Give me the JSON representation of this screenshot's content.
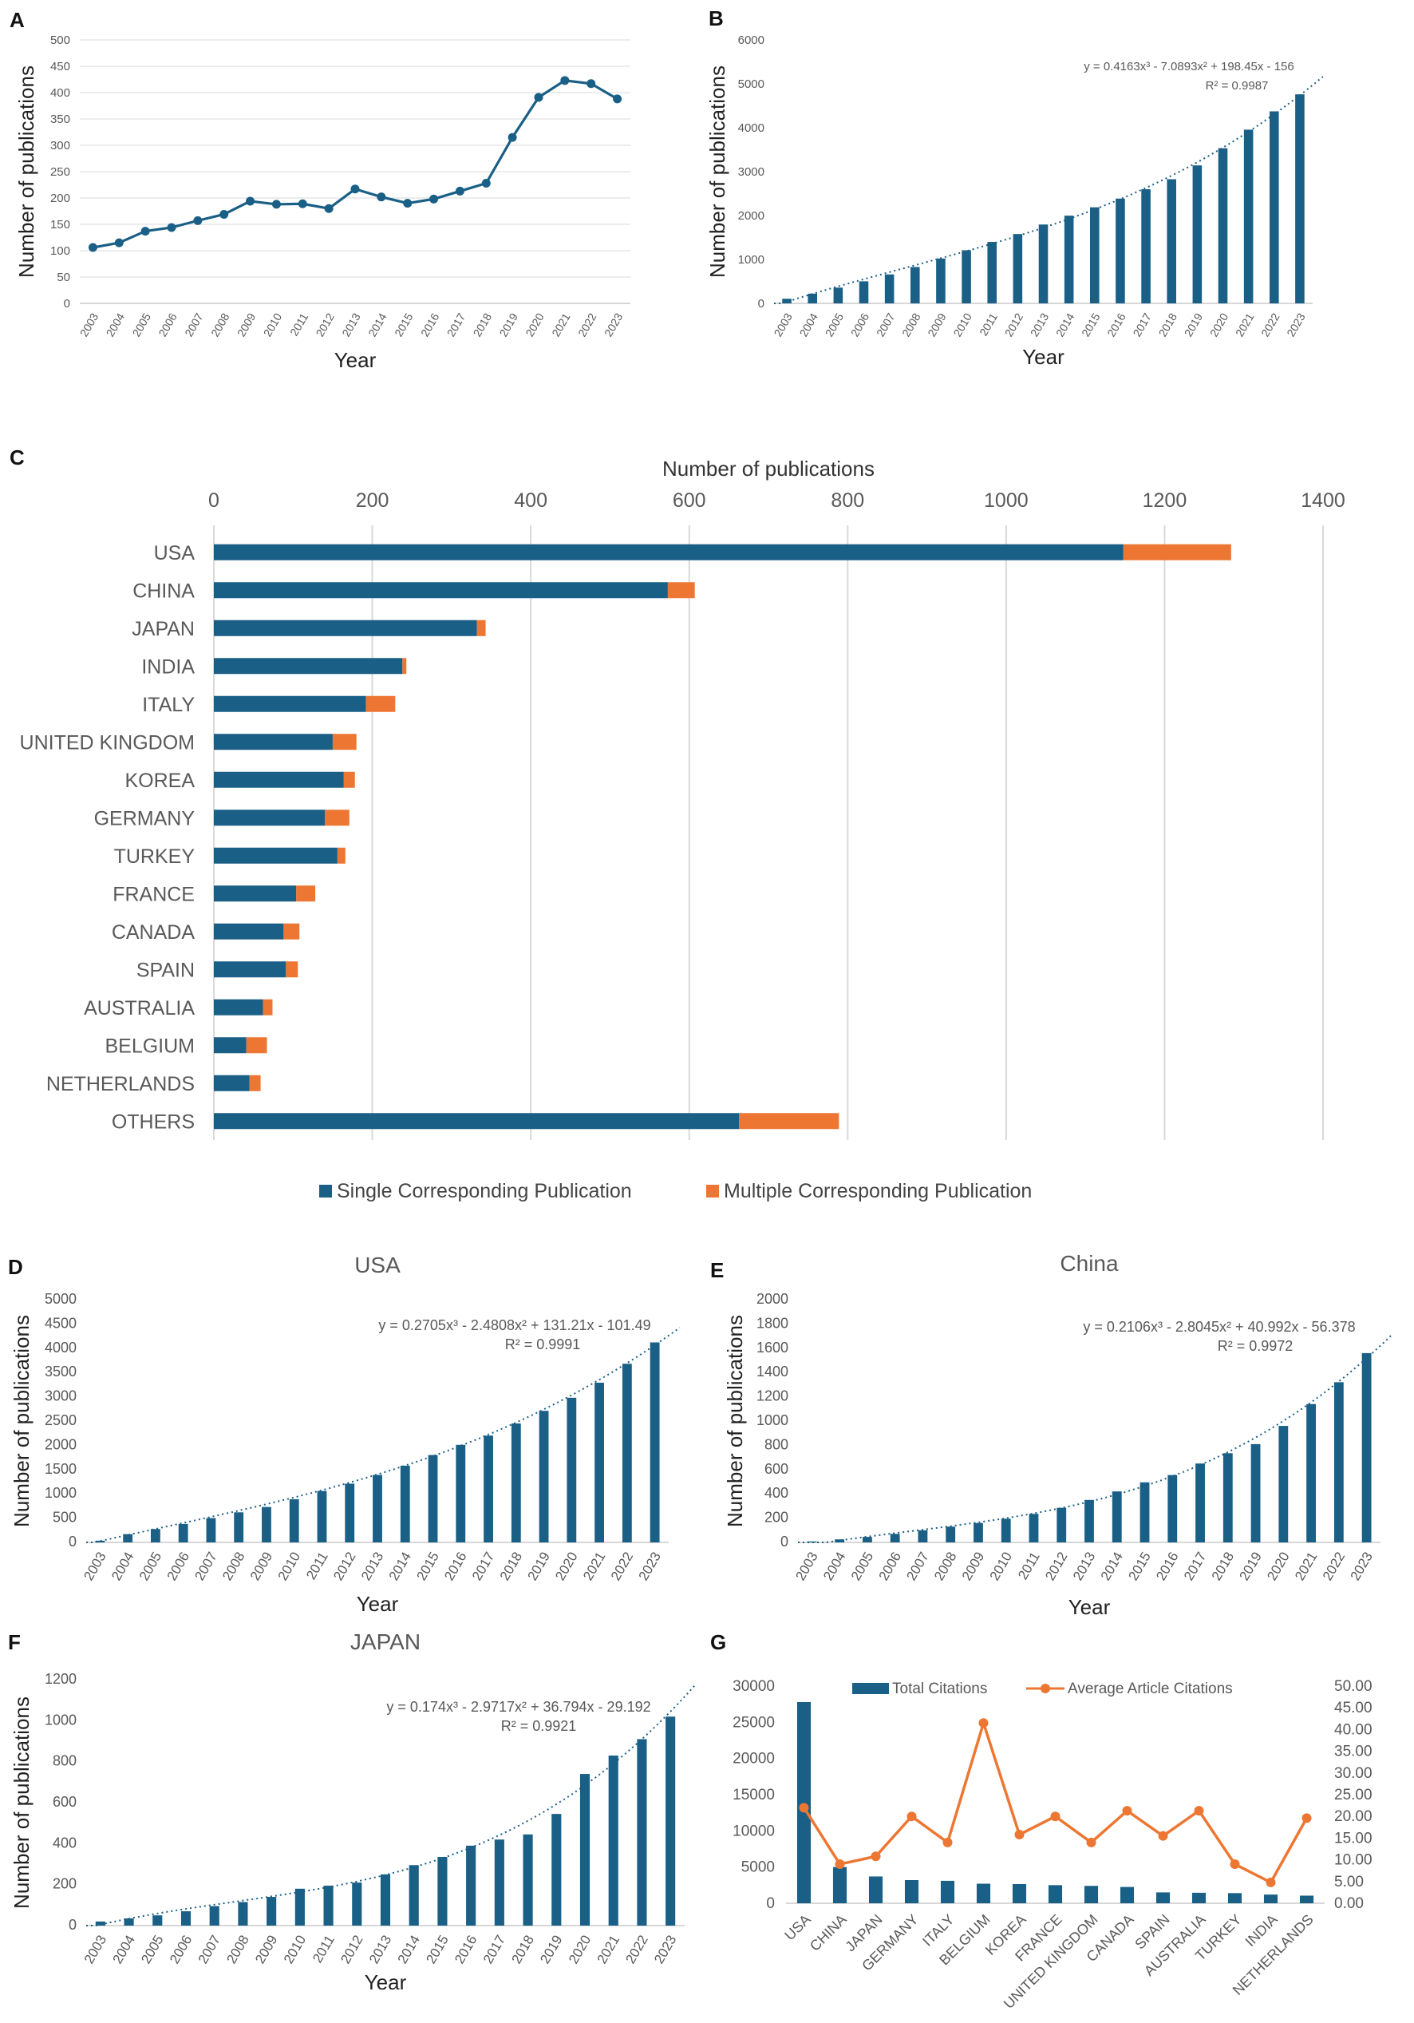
{
  "chart_data": [
    {
      "panel": "A",
      "type": "line",
      "xlabel": "Year",
      "ylabel": "Number of publications",
      "ylim": [
        0,
        500
      ],
      "yticks": [
        0,
        50,
        100,
        150,
        200,
        250,
        300,
        350,
        400,
        450,
        500
      ],
      "categories": [
        "2003",
        "2004",
        "2005",
        "2006",
        "2007",
        "2008",
        "2009",
        "2010",
        "2011",
        "2012",
        "2013",
        "2014",
        "2015",
        "2016",
        "2017",
        "2018",
        "2019",
        "2020",
        "2021",
        "2022",
        "2023"
      ],
      "values": [
        106,
        115,
        137,
        144,
        157,
        169,
        194,
        188,
        189,
        180,
        217,
        202,
        190,
        198,
        213,
        228,
        315,
        391,
        423,
        417,
        388
      ],
      "grid": true,
      "color": "#1a5f86"
    },
    {
      "panel": "B",
      "type": "bar",
      "xlabel": "Year",
      "ylabel": "Number of publications",
      "ylim": [
        0,
        6000
      ],
      "yticks": [
        0,
        1000,
        2000,
        3000,
        4000,
        5000,
        6000
      ],
      "categories": [
        "2003",
        "2004",
        "2005",
        "2006",
        "2007",
        "2008",
        "2009",
        "2010",
        "2011",
        "2012",
        "2013",
        "2014",
        "2015",
        "2016",
        "2017",
        "2018",
        "2019",
        "2020",
        "2021",
        "2022",
        "2023"
      ],
      "values": [
        106,
        221,
        358,
        502,
        659,
        828,
        1022,
        1210,
        1399,
        1579,
        1796,
        1998,
        2188,
        2386,
        2599,
        2827,
        3142,
        3533,
        3956,
        4373,
        4761
      ],
      "trendline": {
        "type": "poly3",
        "coef": [
          0.4163,
          -7.0893,
          198.45,
          -156
        ],
        "equation": "y = 0.4163x³ - 7.0893x² + 198.45x - 156",
        "r2": "R² = 0.9987"
      },
      "grid": false,
      "color": "#1a5f86"
    },
    {
      "panel": "C",
      "type": "bar",
      "orientation": "horizontal",
      "stacked": true,
      "title": "Number of publications",
      "xlim": [
        0,
        1400
      ],
      "xticks": [
        0,
        200,
        400,
        600,
        800,
        1000,
        1200,
        1400
      ],
      "categories": [
        "USA",
        "CHINA",
        "JAPAN",
        "INDIA",
        "ITALY",
        "UNITED KINGDOM",
        "KOREA",
        "GERMANY",
        "TURKEY",
        "FRANCE",
        "CANADA",
        "SPAIN",
        "AUSTRALIA",
        "BELGIUM",
        "NETHERLANDS",
        "OTHERS"
      ],
      "series": [
        {
          "name": "Single Corresponding Publication",
          "color": "#1a5f86",
          "values": [
            1148,
            573,
            332,
            238,
            192,
            150,
            164,
            140,
            156,
            104,
            88,
            91,
            62,
            41,
            45,
            663
          ]
        },
        {
          "name": "Multiple Corresponding Publication",
          "color": "#ed7732",
          "values": [
            136,
            34,
            11,
            5,
            37,
            30,
            14,
            31,
            10,
            24,
            20,
            15,
            12,
            26,
            14,
            126
          ]
        }
      ],
      "legend": "bottom",
      "grid": true
    },
    {
      "panel": "D",
      "type": "bar",
      "title": "USA",
      "xlabel": "Year",
      "ylabel": "Number of publications",
      "ylim": [
        0,
        5000
      ],
      "yticks": [
        0,
        500,
        1000,
        1500,
        2000,
        2500,
        3000,
        3500,
        4000,
        4500,
        5000
      ],
      "categories": [
        "2003",
        "2004",
        "2005",
        "2006",
        "2007",
        "2008",
        "2009",
        "2010",
        "2011",
        "2012",
        "2013",
        "2014",
        "2015",
        "2016",
        "2017",
        "2018",
        "2019",
        "2020",
        "2021",
        "2022",
        "2023"
      ],
      "values": [
        35,
        170,
        275,
        380,
        500,
        620,
        730,
        890,
        1060,
        1210,
        1390,
        1580,
        1800,
        2010,
        2200,
        2450,
        2710,
        2980,
        3290,
        3680,
        4120
      ],
      "trendline": {
        "type": "poly3",
        "coef": [
          0.2705,
          -2.4808,
          131.21,
          -101.49
        ],
        "equation": "y = 0.2705x³ - 2.4808x² + 131.21x - 101.49",
        "r2": "R² = 0.9991"
      },
      "grid": false,
      "color": "#1a5f86"
    },
    {
      "panel": "E",
      "type": "bar",
      "title": "China",
      "xlabel": "Year",
      "ylabel": "Number of publications",
      "ylim": [
        0,
        2000
      ],
      "yticks": [
        0,
        200,
        400,
        600,
        800,
        1000,
        1200,
        1400,
        1600,
        1800,
        2000
      ],
      "categories": [
        "2003",
        "2004",
        "2005",
        "2006",
        "2007",
        "2008",
        "2009",
        "2010",
        "2011",
        "2012",
        "2013",
        "2014",
        "2015",
        "2016",
        "2017",
        "2018",
        "2019",
        "2020",
        "2021",
        "2022",
        "2023"
      ],
      "values": [
        8,
        25,
        45,
        70,
        100,
        130,
        160,
        195,
        235,
        285,
        350,
        420,
        495,
        555,
        650,
        735,
        810,
        960,
        1140,
        1320,
        1560
      ],
      "trendline": {
        "type": "poly3",
        "coef": [
          0.2106,
          -2.8045,
          40.992,
          -56.378
        ],
        "equation": "y = 0.2106x³ - 2.8045x² + 40.992x - 56.378",
        "r2": "R² = 0.9972"
      },
      "grid": false,
      "color": "#1a5f86"
    },
    {
      "panel": "F",
      "type": "bar",
      "title": "JAPAN",
      "xlabel": "Year",
      "ylabel": "Number of publications",
      "ylim": [
        0,
        1200
      ],
      "yticks": [
        0,
        200,
        400,
        600,
        800,
        1000,
        1200
      ],
      "categories": [
        "2003",
        "2004",
        "2005",
        "2006",
        "2007",
        "2008",
        "2009",
        "2010",
        "2011",
        "2012",
        "2013",
        "2014",
        "2015",
        "2016",
        "2017",
        "2018",
        "2019",
        "2020",
        "2021",
        "2022",
        "2023"
      ],
      "values": [
        20,
        35,
        50,
        70,
        95,
        115,
        140,
        180,
        195,
        210,
        250,
        295,
        335,
        390,
        420,
        445,
        545,
        740,
        830,
        910,
        1020
      ],
      "trendline": {
        "type": "poly3",
        "coef": [
          0.174,
          -2.9717,
          36.794,
          -29.192
        ],
        "equation": "y = 0.174x³ - 2.9717x² + 36.794x - 29.192",
        "r2": "R² = 0.9921"
      },
      "grid": false,
      "color": "#1a5f86"
    },
    {
      "panel": "G",
      "type": "bar",
      "categories": [
        "USA",
        "CHINA",
        "JAPAN",
        "GERMANY",
        "ITALY",
        "BELGIUM",
        "KOREA",
        "FRANCE",
        "UNITED KINGDOM",
        "CANADA",
        "SPAIN",
        "AUSTRALIA",
        "TURKEY",
        "INDIA",
        "NETHERLANDS"
      ],
      "series": [
        {
          "name": "Total Citations",
          "kind": "bar",
          "axis": "left",
          "color": "#1a5f86",
          "values": [
            27800,
            5000,
            3700,
            3200,
            3100,
            2700,
            2650,
            2500,
            2400,
            2250,
            1500,
            1450,
            1400,
            1200,
            1050
          ]
        },
        {
          "name": "Average Article Citations",
          "kind": "line",
          "axis": "right",
          "color": "#ed7732",
          "values": [
            22.0,
            9.0,
            10.8,
            20.0,
            14.0,
            41.5,
            15.8,
            20.0,
            14.0,
            21.3,
            15.5,
            21.3,
            9.0,
            4.8,
            19.6
          ]
        }
      ],
      "ylim_left": [
        0,
        30000
      ],
      "yticks_left": [
        0,
        5000,
        10000,
        15000,
        20000,
        25000,
        30000
      ],
      "ylim_right": [
        0,
        50
      ],
      "yticks_right": [
        "0.00",
        "5.00",
        "10.00",
        "15.00",
        "20.00",
        "25.00",
        "30.00",
        "35.00",
        "40.00",
        "45.00",
        "50.00"
      ],
      "legend": "top",
      "grid": false
    }
  ]
}
